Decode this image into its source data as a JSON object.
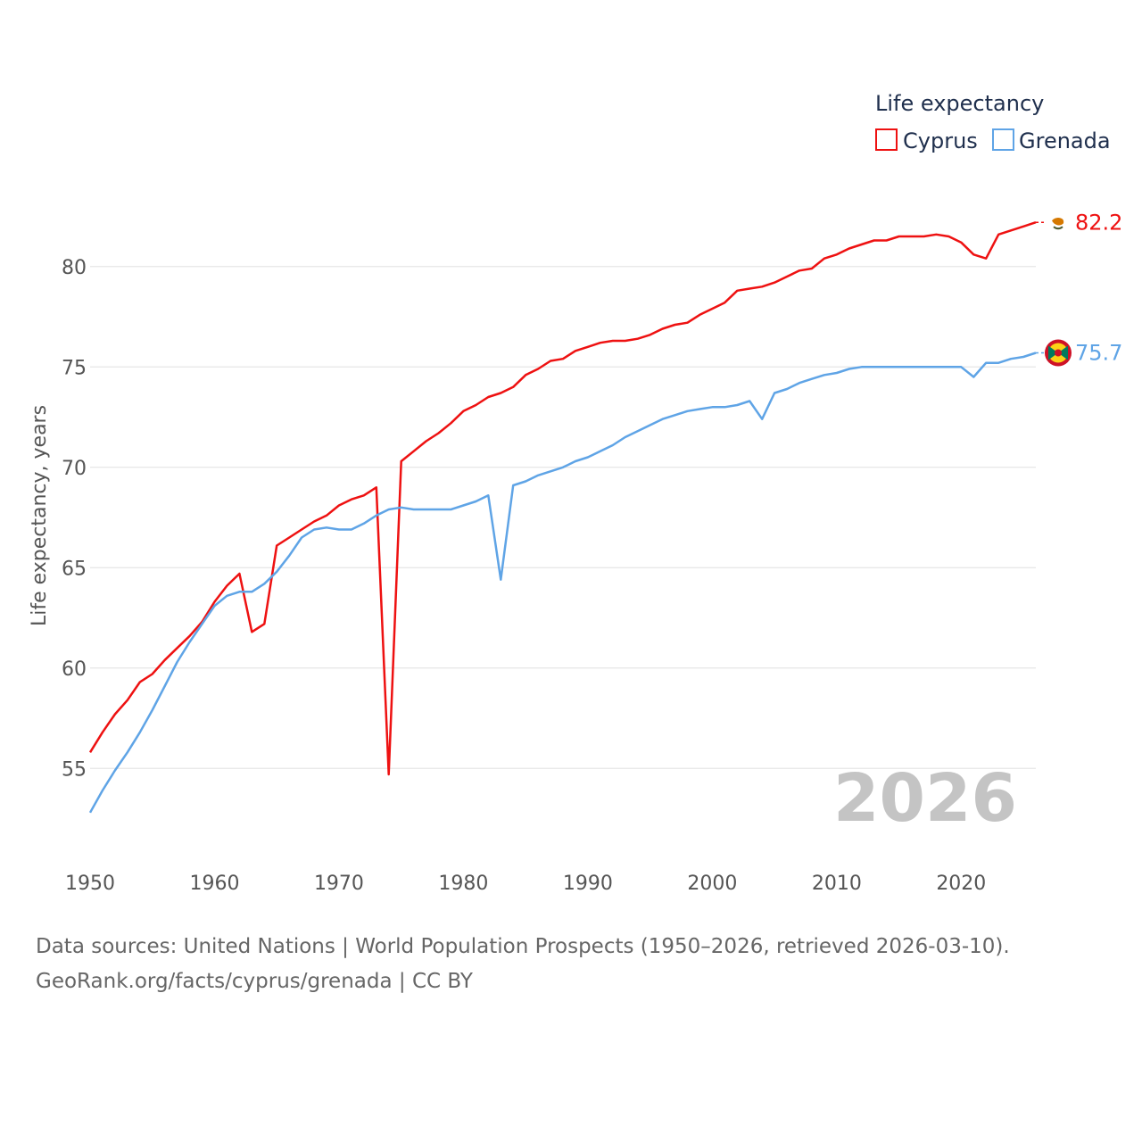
{
  "chart_data": {
    "type": "line",
    "title": "",
    "xlabel": "",
    "ylabel": "Life expectancy, years",
    "xlim": [
      1950,
      2026
    ],
    "ylim": [
      51.5,
      83.5
    ],
    "yticks": [
      55,
      60,
      65,
      70,
      75,
      80
    ],
    "xticks": [
      1950,
      1960,
      1970,
      1980,
      1990,
      2000,
      2010,
      2020
    ],
    "grid": true,
    "legend": {
      "title": "Life expectancy",
      "position": "top-right",
      "entries": [
        "Cyprus",
        "Grenada"
      ]
    },
    "year_watermark": "2026",
    "x": [
      1950,
      1951,
      1952,
      1953,
      1954,
      1955,
      1956,
      1957,
      1958,
      1959,
      1960,
      1961,
      1962,
      1963,
      1964,
      1965,
      1966,
      1967,
      1968,
      1969,
      1970,
      1971,
      1972,
      1973,
      1974,
      1975,
      1976,
      1977,
      1978,
      1979,
      1980,
      1981,
      1982,
      1983,
      1984,
      1985,
      1986,
      1987,
      1988,
      1989,
      1990,
      1991,
      1992,
      1993,
      1994,
      1995,
      1996,
      1997,
      1998,
      1999,
      2000,
      2001,
      2002,
      2003,
      2004,
      2005,
      2006,
      2007,
      2008,
      2009,
      2010,
      2011,
      2012,
      2013,
      2014,
      2015,
      2016,
      2017,
      2018,
      2019,
      2020,
      2021,
      2022,
      2023,
      2024,
      2025,
      2026
    ],
    "series": [
      {
        "name": "Cyprus",
        "color": "#ee1111",
        "end_label": "82.2",
        "flag": "cyprus-flag",
        "values": [
          55.8,
          56.8,
          57.7,
          58.4,
          59.3,
          59.7,
          60.4,
          61.0,
          61.6,
          62.3,
          63.3,
          64.1,
          64.7,
          61.8,
          62.2,
          66.1,
          66.5,
          66.9,
          67.3,
          67.6,
          68.1,
          68.4,
          68.6,
          69.0,
          54.7,
          70.3,
          70.8,
          71.3,
          71.7,
          72.2,
          72.8,
          73.1,
          73.5,
          73.7,
          74.0,
          74.6,
          74.9,
          75.3,
          75.4,
          75.8,
          76.0,
          76.2,
          76.3,
          76.3,
          76.4,
          76.6,
          76.9,
          77.1,
          77.2,
          77.6,
          77.9,
          78.2,
          78.8,
          78.9,
          79.0,
          79.2,
          79.5,
          79.8,
          79.9,
          80.4,
          80.6,
          80.9,
          81.1,
          81.3,
          81.3,
          81.5,
          81.5,
          81.5,
          81.6,
          81.5,
          81.2,
          80.6,
          80.4,
          81.6,
          81.8,
          82.0,
          82.2
        ]
      },
      {
        "name": "Grenada",
        "color": "#5fa4e6",
        "end_label": "75.7",
        "flag": "grenada-flag",
        "values": [
          52.8,
          53.9,
          54.9,
          55.8,
          56.8,
          57.9,
          59.1,
          60.3,
          61.3,
          62.2,
          63.1,
          63.6,
          63.8,
          63.8,
          64.2,
          64.8,
          65.6,
          66.5,
          66.9,
          67.0,
          66.9,
          66.9,
          67.2,
          67.6,
          67.9,
          68.0,
          67.9,
          67.9,
          67.9,
          67.9,
          68.1,
          68.3,
          68.6,
          64.4,
          69.1,
          69.3,
          69.6,
          69.8,
          70.0,
          70.3,
          70.5,
          70.8,
          71.1,
          71.5,
          71.8,
          72.1,
          72.4,
          72.6,
          72.8,
          72.9,
          73.0,
          73.0,
          73.1,
          73.3,
          72.4,
          73.7,
          73.9,
          74.2,
          74.4,
          74.6,
          74.7,
          74.9,
          75.0,
          75.0,
          75.0,
          75.0,
          75.0,
          75.0,
          75.0,
          75.0,
          75.0,
          74.5,
          75.2,
          75.2,
          75.4,
          75.5,
          75.7
        ]
      }
    ]
  },
  "footer": {
    "line1": "Data sources: United Nations | World Population Prospects (1950–2026, retrieved 2026-03-10).",
    "line2": "GeoRank.org/facts/cyprus/grenada | CC BY"
  }
}
